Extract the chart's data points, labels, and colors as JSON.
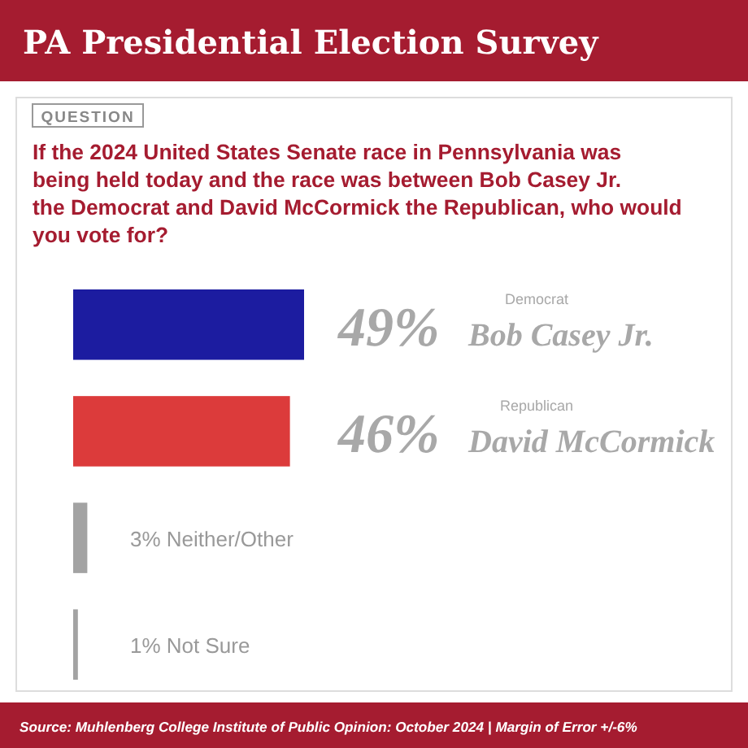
{
  "chart_data": {
    "type": "bar",
    "orientation": "horizontal",
    "title": "PA Presidential Election Survey",
    "subtitle": "If the 2024 United States Senate race in Pennsylvania was being held today and the race was between Bob Casey Jr. the Democrat and David McCormick the Republican, who would you vote for?",
    "categories": [
      "Bob Casey Jr.",
      "David McCormick",
      "Neither/Other",
      "Not Sure"
    ],
    "values": [
      49,
      46,
      3,
      1
    ],
    "colors": [
      "#1c1ca0",
      "#dc3b3b",
      "#a3a3a3",
      "#a3a3a3"
    ],
    "value_labels": [
      "49%",
      "46%",
      "3%",
      "1%"
    ],
    "annotations": [
      "QUESTION",
      "Democrat",
      "Republican",
      "Source: Muhlenberg College Institute of Public Opinion: October 2024 | Margin of Error +/-6%"
    ]
  }
}
